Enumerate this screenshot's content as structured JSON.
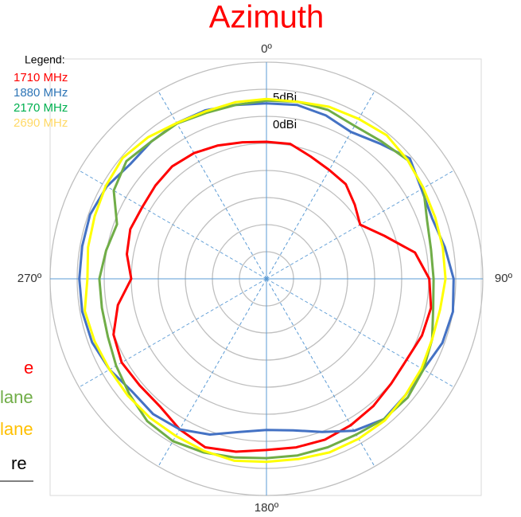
{
  "chart_data": {
    "type": "polar",
    "title": "Azimuth",
    "title_color": "#ff0000",
    "legend_title": "Legend:",
    "legend": "upper left",
    "rlim": [
      -30,
      10
    ],
    "rticks": [
      {
        "value": -25,
        "label": null
      },
      {
        "value": -20,
        "label": null
      },
      {
        "value": -15,
        "label": null
      },
      {
        "value": -10,
        "label": null
      },
      {
        "value": -5,
        "label": null
      },
      {
        "value": 0,
        "label": "0dBi"
      },
      {
        "value": 5,
        "label": "5dBi"
      },
      {
        "value": 10,
        "label": null
      }
    ],
    "thetaticks": [
      {
        "value": 0,
        "label": "0º"
      },
      {
        "value": 90,
        "label": "90º"
      },
      {
        "value": 180,
        "label": "180º"
      },
      {
        "value": 270,
        "label": "270º"
      }
    ],
    "thetagrid": [
      0,
      30,
      60,
      90,
      120,
      150,
      180,
      210,
      240,
      270,
      300,
      330
    ],
    "theta": [
      0,
      10,
      20,
      30,
      40,
      50,
      60,
      70,
      80,
      90,
      100,
      110,
      120,
      130,
      140,
      150,
      160,
      170,
      180,
      190,
      200,
      210,
      220,
      230,
      240,
      250,
      260,
      270,
      280,
      290,
      300,
      310,
      320,
      330,
      340,
      350
    ],
    "series": [
      {
        "name": "1710 MHz",
        "color": "#ff0000",
        "values": [
          -4.7,
          -4.7,
          -6.0,
          -6.8,
          -7.2,
          -8.7,
          -10,
          -6.8,
          -2.1,
          0.1,
          0.9,
          0.6,
          -0.1,
          0.1,
          0.7,
          1.2,
          1.6,
          1.6,
          1.6,
          2.4,
          3.1,
          2.1,
          0.7,
          0.6,
          0.9,
          0.1,
          -2.1,
          -5,
          -3.8,
          -3.2,
          -3.5,
          -3.2,
          -2.9,
          -3.2,
          -3.8,
          -4.4
        ]
      },
      {
        "name": "1880 MHz",
        "color": "#4472c4",
        "values": [
          2.4,
          2.6,
          2.1,
          1.3,
          2.6,
          4.6,
          3.1,
          2.6,
          3.5,
          4.6,
          5,
          4.6,
          3.5,
          3.5,
          3.8,
          2.4,
          0.1,
          -1.6,
          -2.1,
          -1.3,
          0.6,
          2.1,
          2.6,
          2.4,
          3.5,
          4.3,
          4.6,
          4.6,
          4.6,
          4.7,
          4.1,
          2.9,
          3.1,
          3.2,
          3.1,
          2.6
        ]
      },
      {
        "name": "2170 MHz",
        "color": "#70ad47",
        "values": [
          2.9,
          3.2,
          3.2,
          2.6,
          3.1,
          4.1,
          3.5,
          1.6,
          0.9,
          0.9,
          1.3,
          2.6,
          3.5,
          4.1,
          3.8,
          3.2,
          3.1,
          3.1,
          3.1,
          3.5,
          4.1,
          4.6,
          4.3,
          3.1,
          2.1,
          1.2,
          0.9,
          0.9,
          0.1,
          -0.6,
          2.6,
          3.8,
          3.1,
          3.1,
          2.6,
          2.6
        ]
      },
      {
        "name": "2690 MHz",
        "color": "#ffff00",
        "values": [
          3.2,
          3.2,
          3.8,
          4.1,
          4.6,
          4.1,
          3.5,
          3.2,
          3.1,
          3.1,
          2.6,
          2.6,
          3.1,
          3.5,
          4.1,
          4.1,
          4.1,
          3.8,
          3.8,
          4.1,
          3.8,
          3.5,
          3.5,
          3.5,
          3.5,
          3.8,
          4.1,
          3.1,
          3.5,
          3.8,
          4.3,
          4.7,
          4.1,
          3.2,
          2.9,
          3.1
        ]
      }
    ],
    "legend_colors": [
      "#ff0000",
      "#2e75b6",
      "#00b050",
      "#ffd966"
    ],
    "annotations": [
      {
        "text": "e",
        "color": "#ff0000"
      },
      {
        "text": "lane",
        "color": "#70ad47"
      },
      {
        "text": "lane",
        "color": "#ffc000"
      },
      {
        "text": "re",
        "color": "#000000"
      }
    ]
  }
}
